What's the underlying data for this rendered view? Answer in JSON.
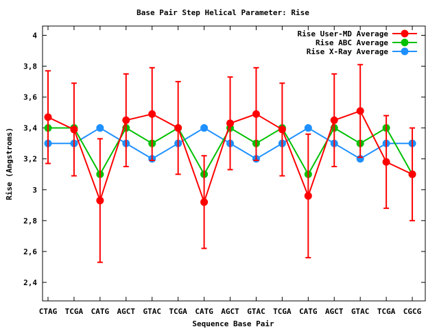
{
  "chart_data": {
    "type": "line",
    "title": "Base Pair Step Helical Parameter: Rise",
    "xlabel": "Sequence Base Pair",
    "ylabel": "Rise (Angstroms)",
    "ylim": [
      2.28,
      4.06
    ],
    "yticks": [
      2.4,
      2.6,
      2.8,
      3,
      3.2,
      3.4,
      3.6,
      3.8,
      4
    ],
    "ytick_labels": [
      "2,4",
      "2,6",
      "2,8",
      "3",
      "3,2",
      "3,4",
      "3,6",
      "3,8",
      "4"
    ],
    "categories": [
      "CTAG",
      "TCGA",
      "CATG",
      "AGCT",
      "GTAC",
      "TCGA",
      "CATG",
      "AGCT",
      "GTAC",
      "TCGA",
      "CATG",
      "AGCT",
      "GTAC",
      "TCGA",
      "CGCG"
    ],
    "legend_position": "top-right",
    "grid": false,
    "series": [
      {
        "name": "Rise User-MD Average",
        "color": "#ff0000",
        "values": [
          3.47,
          3.39,
          2.93,
          3.45,
          3.49,
          3.4,
          2.92,
          3.43,
          3.49,
          3.39,
          2.96,
          3.45,
          3.51,
          3.18,
          3.1
        ],
        "error": [
          0.3,
          0.3,
          0.4,
          0.3,
          0.3,
          0.3,
          0.3,
          0.3,
          0.3,
          0.3,
          0.4,
          0.3,
          0.3,
          0.3,
          0.3
        ]
      },
      {
        "name": "Rise ABC Average",
        "color": "#00c000",
        "values": [
          3.4,
          3.4,
          3.1,
          3.4,
          3.3,
          3.4,
          3.1,
          3.4,
          3.3,
          3.4,
          3.1,
          3.4,
          3.3,
          3.4,
          3.1
        ]
      },
      {
        "name": "Rise X-Ray Average",
        "color": "#1e90ff",
        "values": [
          3.3,
          3.3,
          3.4,
          3.3,
          3.2,
          3.3,
          3.4,
          3.3,
          3.2,
          3.3,
          3.4,
          3.3,
          3.2,
          3.3,
          3.3
        ]
      }
    ]
  }
}
